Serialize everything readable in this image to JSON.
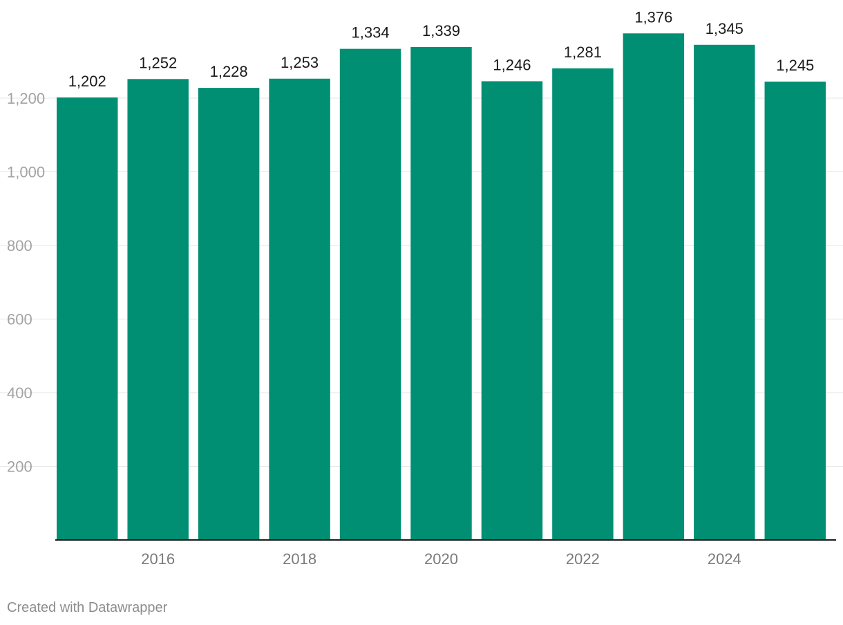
{
  "chart_data": {
    "type": "bar",
    "categories": [
      "2015",
      "2016",
      "2017",
      "2018",
      "2019",
      "2020",
      "2021",
      "2022",
      "2023",
      "2024",
      "2025"
    ],
    "values": [
      1202,
      1252,
      1228,
      1253,
      1334,
      1339,
      1246,
      1281,
      1376,
      1345,
      1245
    ],
    "value_labels": [
      "1,202",
      "1,252",
      "1,228",
      "1,253",
      "1,334",
      "1,339",
      "1,246",
      "1,281",
      "1,376",
      "1,345",
      "1,245"
    ],
    "x_tick_labels": [
      "2016",
      "2018",
      "2020",
      "2022",
      "2024"
    ],
    "y_tick_values": [
      200,
      400,
      600,
      800,
      1000,
      1200
    ],
    "y_tick_labels": [
      "200",
      "400",
      "600",
      "800",
      "1,000",
      "1,200"
    ],
    "ylim": [
      0,
      1400
    ],
    "title": "",
    "xlabel": "",
    "ylabel": "",
    "grid": true,
    "bar_color": "#008f73",
    "gridline_color": "#e6e6e6",
    "baseline_color": "#1a1a1a"
  },
  "credit": "Created with Datawrapper"
}
